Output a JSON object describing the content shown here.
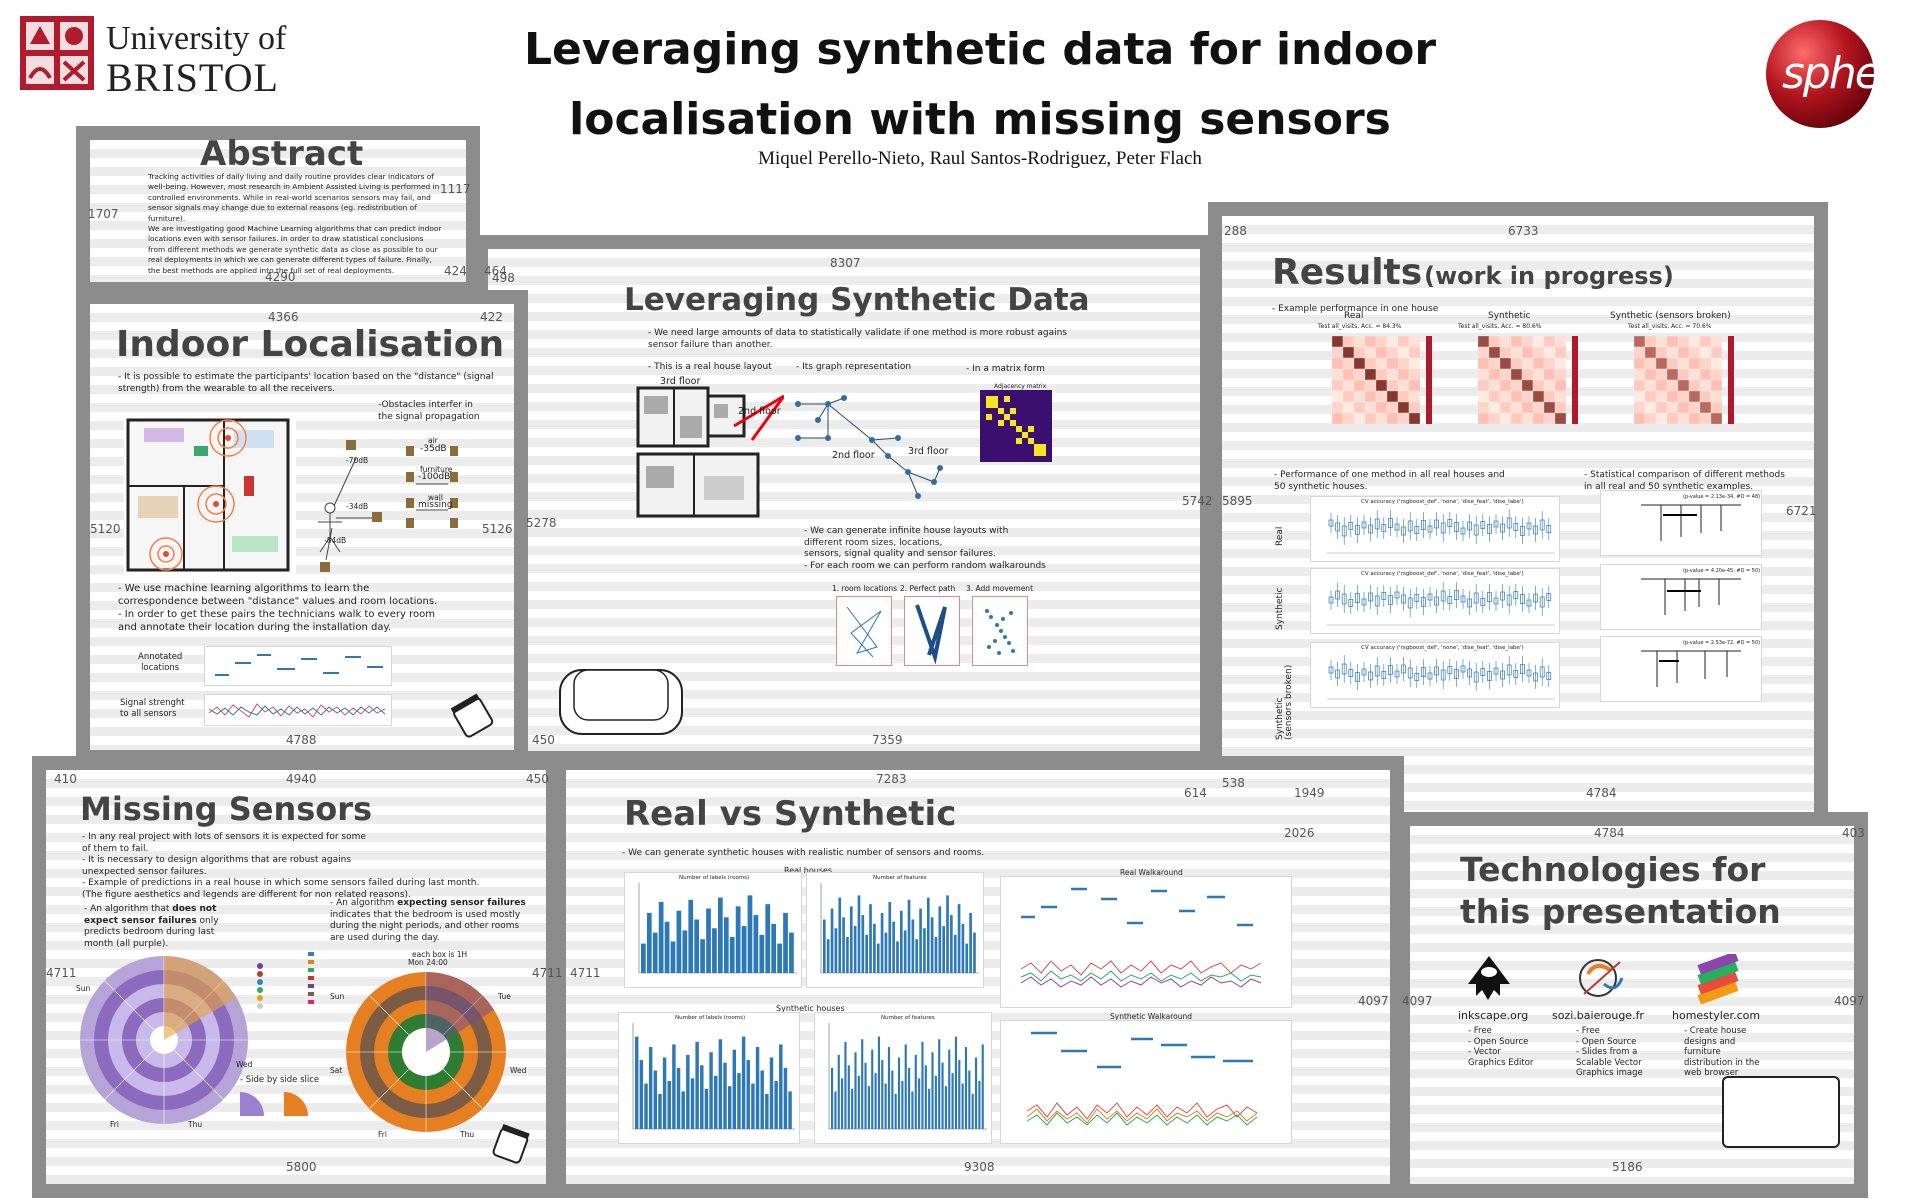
{
  "header": {
    "university_line1": "University of",
    "university_line2": "BRISTOL",
    "title_line1": "Leveraging synthetic data for indoor",
    "title_line2": "localisation with missing sensors",
    "authors": "Miquel  Perello-Nieto,  Raul  Santos-Rodriguez,  Peter  Flach",
    "sphere_logo": "sphere"
  },
  "abstract": {
    "heading": "Abstract",
    "text": [
      "Tracking activities of daily living and daily routine provides clear indicators of",
      "well-being. However, most research in Ambient Assisted Living is performed in",
      "controlled environments. While in real-world scenarios sensors may fail, and",
      "sensor signals may change due to external reasons (eg. redistribution of furniture).",
      "We are investigating good Machine Learning algorithms that can predict indoor",
      "locations even with sensor failures. In order to draw statistical conclusions",
      "from different methods we generate synthetic data as close as possible to our",
      "real deployments in which we can generate different types of failure. Finally,",
      "the best methods are applied into the full set of real deployments."
    ]
  },
  "indoor": {
    "heading": "Indoor Localisation",
    "p1": [
      "- It is possible to estimate the participants' location based on the \"distance\" (signal",
      "strength) from the wearable to all the receivers."
    ],
    "obstacles": [
      "-Obstacles interfer in",
      "the signal propagation"
    ],
    "air": "air",
    "air_db": "-35dB",
    "furniture": "furniture",
    "furniture_db": "-100dB",
    "wall": "wall",
    "missing": "missing",
    "db70": "-70dB",
    "db34": "-34dB",
    "db84": "-84dB",
    "p2": [
      "- We use machine learning algorithms to learn the",
      "  correspondence between \"distance\" values and room locations.",
      "- In order to get these pairs the technicians walk to every room",
      "  and annotate their location during the installation day."
    ],
    "annotated": [
      "Annotated",
      "locations"
    ],
    "signal": [
      "Signal strenght",
      "to all sensors"
    ]
  },
  "leveraging": {
    "heading": "Leveraging Synthetic Data",
    "p1": [
      "- We need large amounts of data to statistically validate if one method is more robust agains",
      "sensor failure than another."
    ],
    "real_layout": "- This is a real house layout",
    "graph_rep": "- Its graph representation",
    "matrix": "- In a matrix form",
    "floor3": "3rd floor",
    "floor2": "2nd floor",
    "adjacency_title": "Adjacency matrix",
    "p2": [
      "- We can generate infinite house layouts with",
      "different room sizes, locations,",
      "sensors, signal quality and sensor failures.",
      "- For each room we can perform random walkarounds"
    ],
    "step1": "1. room locations",
    "step2": "2. Perfect path",
    "step3": "3. Add movement"
  },
  "results": {
    "heading": "Results",
    "subheading": "(work in progress)",
    "example": "- Example performance in one house",
    "cm_titles": [
      "Real",
      "Synthetic",
      "Synthetic (sensors broken)"
    ],
    "cm_subtitles": [
      "Test all_visits, Acc. = 84.3%",
      "Test all_visits, Acc. = 80.6%",
      "Test all_visits, Acc. = 70.6%"
    ],
    "perf": [
      "- Performance of one method in all real houses and",
      "50 synthetic houses."
    ],
    "stat": [
      "- Statistical comparison of different methods",
      "in all real and 50 synthetic examples."
    ],
    "row_labels": [
      "Real",
      "Synthetic",
      "Synthetic\n(sensors broken)"
    ],
    "cv_title": "CV accuracy ('rsgboost_def', 'none', 'dise_feat', 'dise_labe')",
    "pvalues": [
      "(p-value = 2.13e-34, #D = 48)",
      "(p-value = 4.20e-45, #D = 50)",
      "(p-value = 2.53e-72, #D = 50)"
    ]
  },
  "missing": {
    "heading": "Missing Sensors",
    "p1": [
      "- In any real project with lots of sensors it is expected for some",
      "  of them to fail.",
      "- It is necessary to design algorithms that are robust agains",
      "unexpected sensor failures.",
      "- Example of predictions in a real house in which some sensors failed during last month.",
      "(The figure aesthetics and legends are different for non related reasons)."
    ],
    "left_a": "- An algorithm that ",
    "left_b": "does not expect sensor failures",
    "left_c": " only predicts bedroom during last month (all purple).",
    "right_a": "- An algorithm ",
    "right_b": "expecting sensor failures",
    "right_c": " indicates that the bedroom is used mostly during the night periods, and other rooms are used during the day.",
    "each_box": "each box is 1H",
    "mon": "Mon 24:00",
    "side": "- Side by side slice",
    "days": [
      "Sun",
      "Tue",
      "Wed",
      "Thu",
      "Fri",
      "Sat",
      "Mon"
    ]
  },
  "realvs": {
    "heading": "Real vs Synthetic",
    "p1": "- We can generate synthetic houses with realistic number of sensors and rooms.",
    "real_houses": "Real houses",
    "synthetic_houses": "Synthetic houses",
    "labels_title": "Number of labels (rooms)",
    "features_title": "Number of features",
    "real_walk": "Real Walkaround",
    "synth_walk": "Synthetic Walkaround"
  },
  "tech": {
    "heading_line1": "Technologies for",
    "heading_line2": "this presentation",
    "items": [
      {
        "name": "inkscape.org",
        "desc": [
          "- Free",
          "- Open Source",
          "- Vector",
          "Graphics Editor"
        ]
      },
      {
        "name": "sozi.baierouge.fr",
        "desc": [
          "- Free",
          "- Open Source",
          "- Slides from a",
          "Scalable Vector",
          "Graphics image"
        ]
      },
      {
        "name": "homestyler.com",
        "desc": [
          "- Create house",
          "designs and",
          "furniture",
          "distribution in the",
          "web browser"
        ]
      }
    ]
  },
  "dimensions": {
    "d1707": "1707",
    "d1117": "1117",
    "d4290": "4290",
    "d424": "424",
    "d464": "464",
    "d498": "498",
    "d8307": "8307",
    "d4366": "4366",
    "d422": "422",
    "d288": "288",
    "d6733": "6733",
    "d5120": "5120",
    "d5126": "5126",
    "d5278": "5278",
    "d5742": "5742",
    "d5895": "5895",
    "d6721": "6721",
    "d4788": "4788",
    "d450a": "450",
    "d7359": "7359",
    "d410": "410",
    "d4940": "4940",
    "d450b": "450",
    "d7283": "7283",
    "d538": "538",
    "d614": "614",
    "d1949": "1949",
    "d4784a": "4784",
    "d2026": "2026",
    "d4784b": "4784",
    "d403": "403",
    "d4711a": "4711",
    "d4711b": "4711",
    "d4711c": "4711",
    "d4097a": "4097",
    "d4097b": "4097",
    "d4097c": "4097",
    "d5800": "5800",
    "d9308": "9308",
    "d5186": "5186"
  },
  "colors": {
    "wall": "#8c8c8c",
    "sphere_red": "#b3151f",
    "bristol_red": "#b01c2e",
    "chart_blue": "#2d78b6",
    "matrix_purple": "#3b0f70",
    "matrix_yellow": "#f6e61f"
  }
}
